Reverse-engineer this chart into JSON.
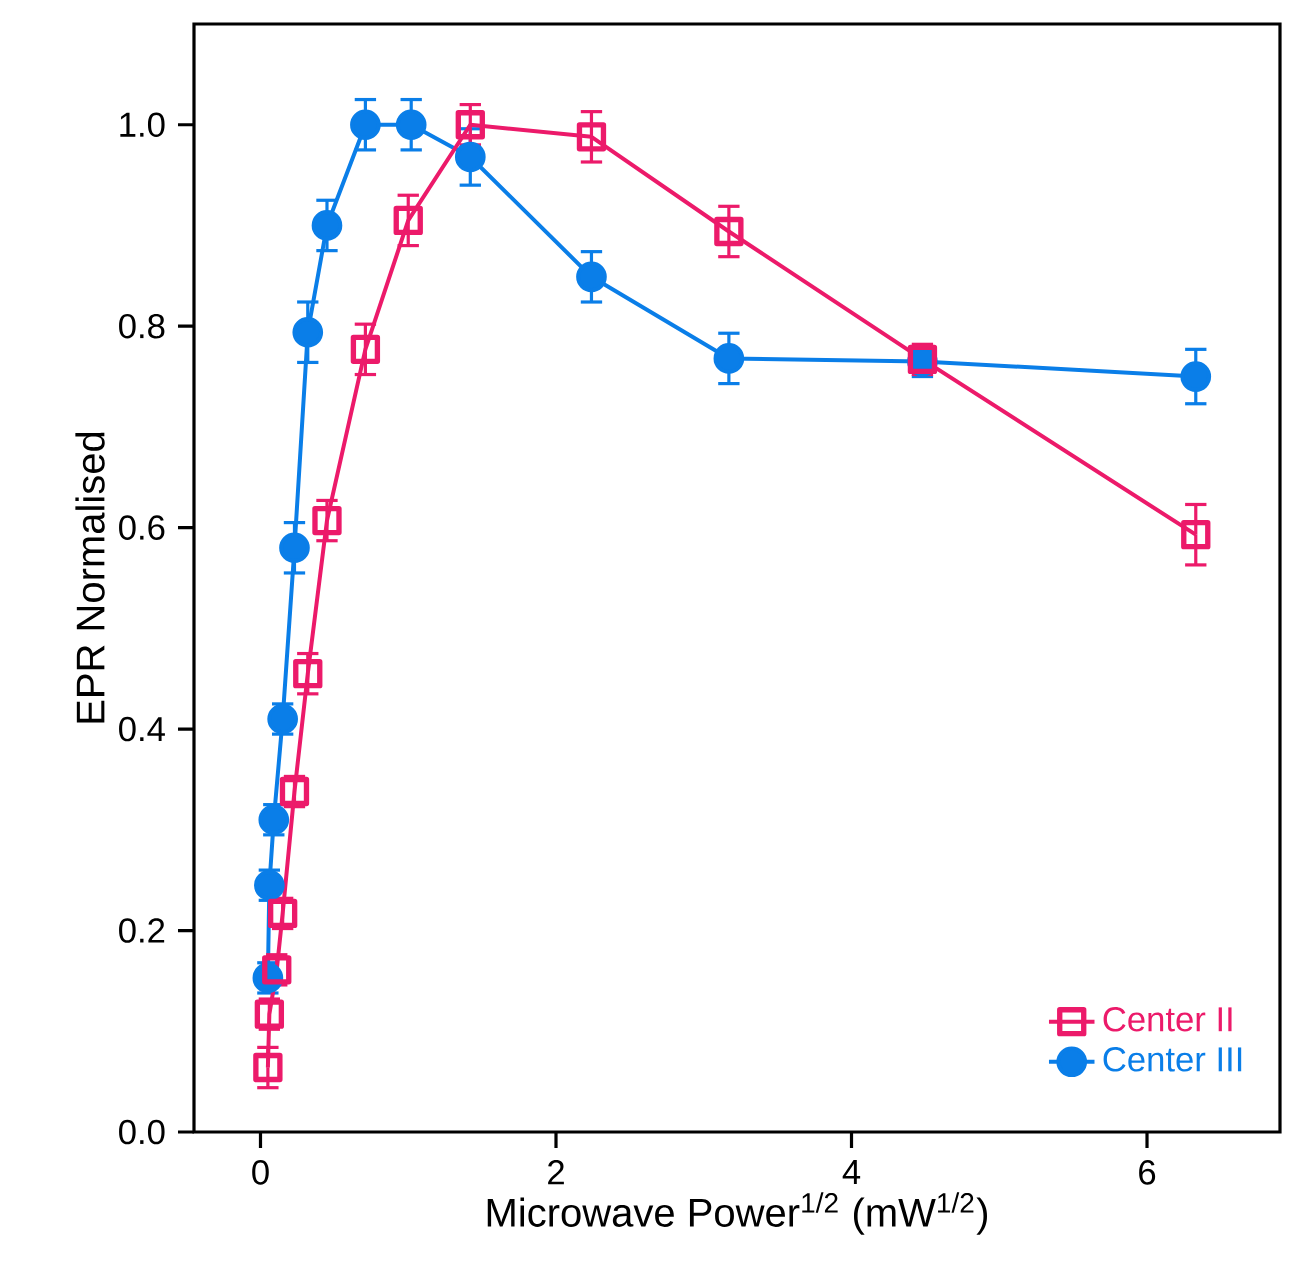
{
  "chart_data": {
    "type": "line",
    "xlabel": "Microwave Power$^{1/2}$ (mW$^{1/2}$)",
    "ylabel": "EPR Normalised",
    "xlim": [
      -0.45,
      6.9
    ],
    "ylim": [
      0,
      1.1
    ],
    "xticks": [
      0,
      2,
      4,
      6
    ],
    "yticks": [
      {
        "value": 0,
        "label": "0.0"
      },
      {
        "value": 0.2,
        "label": "0.2"
      },
      {
        "value": 0.4,
        "label": "0.4"
      },
      {
        "value": 0.6,
        "label": "0.6"
      },
      {
        "value": 0.8,
        "label": "0.8"
      },
      {
        "value": 1.0,
        "label": "1.0"
      }
    ],
    "grid": false,
    "legend": "bottom right",
    "series": [
      {
        "name": "Center II",
        "color": "#ec1a6a",
        "marker": "square",
        "x": [
          0.05,
          0.06,
          0.11,
          0.15,
          0.23,
          0.32,
          0.45,
          0.71,
          1.0,
          1.42,
          2.24,
          3.17,
          4.48,
          6.33
        ],
        "values": [
          0.064,
          0.117,
          0.161,
          0.217,
          0.338,
          0.455,
          0.607,
          0.777,
          0.905,
          1.0,
          0.988,
          0.894,
          0.767,
          0.593
        ],
        "errors": [
          0.02,
          0.015,
          0.015,
          0.015,
          0.015,
          0.02,
          0.02,
          0.025,
          0.025,
          0.02,
          0.025,
          0.025,
          0.015,
          0.03
        ]
      },
      {
        "name": "Center III",
        "color": "#0a7ee8",
        "marker": "circle",
        "x": [
          0.05,
          0.06,
          0.09,
          0.15,
          0.23,
          0.32,
          0.45,
          0.71,
          1.02,
          1.42,
          2.24,
          3.17,
          4.48,
          6.33
        ],
        "values": [
          0.153,
          0.245,
          0.31,
          0.41,
          0.58,
          0.794,
          0.9,
          1.0,
          1.0,
          0.968,
          0.849,
          0.768,
          0.765,
          0.75
        ],
        "errors": [
          0.015,
          0.015,
          0.015,
          0.015,
          0.025,
          0.03,
          0.025,
          0.025,
          0.025,
          0.028,
          0.025,
          0.025,
          0.015,
          0.027
        ]
      }
    ]
  }
}
